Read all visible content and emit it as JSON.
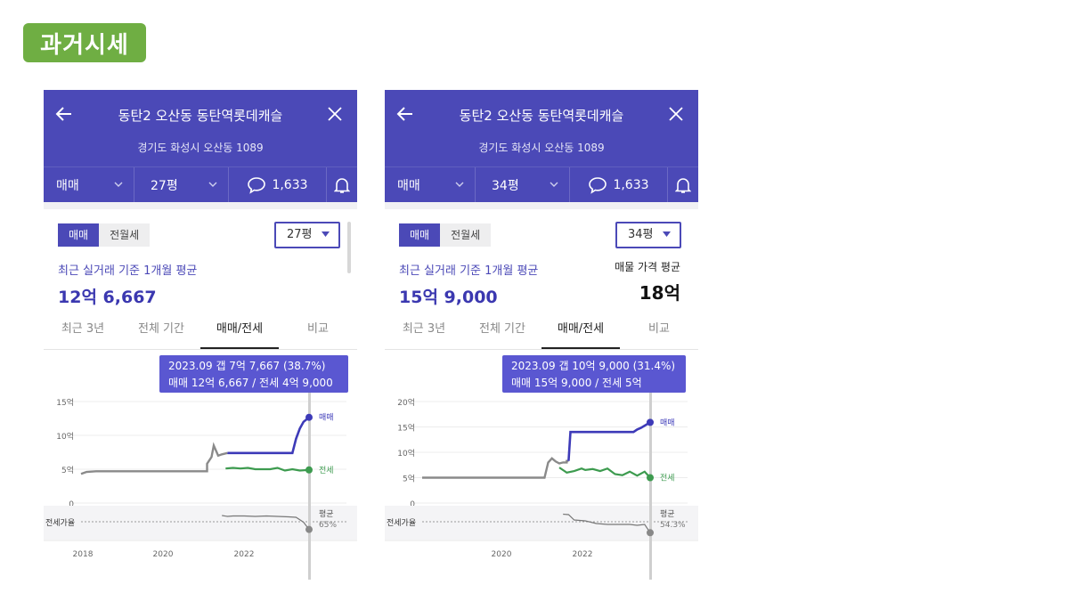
{
  "section_badge": "과거시세",
  "panels": [
    {
      "title": "동탄2 오산동 동탄역롯데캐슬",
      "address": "경기도 화성시 오산동 1089",
      "trade_type": "매매",
      "size_select": "27평",
      "comment_count": "1,633",
      "seg_on": "매매",
      "seg_off": "전월세",
      "dropdown": "27평",
      "caption": "최근 실거래 기준 1개월 평균",
      "price": "12억 6,667",
      "ask_caption": "",
      "ask_value": "",
      "tabs": [
        "최근 3년",
        "전체 기간",
        "매매/전세",
        "비교"
      ],
      "tooltip_line1": "2023.09  갭 7억 7,667 (38.7%)",
      "tooltip_line2": "매매 12억 6,667 / 전세 4억 9,000",
      "y_ticks": [
        "15억",
        "10억",
        "5억",
        "0"
      ],
      "ratio_label": "전세가율",
      "label_sale": "매매",
      "label_jeonse": "전세",
      "label_avg": "평균",
      "avg_ratio": "65%",
      "x_ticks": [
        "2018",
        "2020",
        "2022"
      ],
      "colors": {
        "sale": "#3d3ab8",
        "jeonse": "#3d9b4f",
        "pre": "#8a8a8a"
      },
      "chart_data": {
        "type": "line",
        "ylim": [
          0,
          15
        ],
        "x_range": [
          2017.6,
          2023.75
        ],
        "series": [
          {
            "name": "매매",
            "x": [
              2017.6,
              2017.75,
              2018,
              2019,
              2020,
              2021,
              2021.0,
              2021.12,
              2021.18,
              2021.3,
              2021.4,
              2021.55,
              2022.0,
              2022.5,
              2023.0,
              2023.3,
              2023.4,
              2023.5,
              2023.6,
              2023.75
            ],
            "y": [
              4.3,
              4.6,
              4.7,
              4.7,
              4.7,
              4.7,
              5.8,
              6.8,
              8.5,
              7.0,
              7.2,
              7.4,
              7.4,
              7.4,
              7.4,
              7.4,
              9.5,
              11.0,
              12.0,
              12.67
            ]
          },
          {
            "name": "전세",
            "x": [
              2021.5,
              2021.7,
              2021.9,
              2022.1,
              2022.3,
              2022.5,
              2022.7,
              2022.9,
              2023.1,
              2023.3,
              2023.5,
              2023.75
            ],
            "y": [
              5.1,
              5.2,
              5.1,
              5.2,
              5.0,
              5.0,
              5.0,
              5.2,
              4.8,
              5.0,
              4.8,
              4.9
            ]
          },
          {
            "name": "전세가율",
            "x": [
              2021.4,
              2021.55,
              2021.7,
              2022.0,
              2022.3,
              2022.6,
              2022.9,
              2023.2,
              2023.4,
              2023.6,
              2023.75
            ],
            "y": [
              70,
              68,
              69,
              69,
              68,
              69,
              68,
              67,
              66,
              55,
              38.7
            ]
          }
        ]
      }
    },
    {
      "title": "동탄2 오산동 동탄역롯데캐슬",
      "address": "경기도 화성시 오산동 1089",
      "trade_type": "매매",
      "size_select": "34평",
      "comment_count": "1,633",
      "seg_on": "매매",
      "seg_off": "전월세",
      "dropdown": "34평",
      "caption": "최근 실거래 기준 1개월 평균",
      "price": "15억 9,000",
      "ask_caption": "매물 가격 평균",
      "ask_value": "18억",
      "tabs": [
        "최근 3년",
        "전체 기간",
        "매매/전세",
        "비교"
      ],
      "tooltip_line1": "2023.09  갭 10억 9,000 (31.4%)",
      "tooltip_line2": "매매 15억 9,000 / 전세 5억",
      "y_ticks": [
        "20억",
        "15억",
        "10억",
        "5억",
        "0"
      ],
      "ratio_label": "전세가율",
      "label_sale": "매매",
      "label_jeonse": "전세",
      "label_avg": "평균",
      "avg_ratio": "54.3%",
      "x_ticks": [
        "2020",
        "2022"
      ],
      "colors": {
        "sale": "#3d3ab8",
        "jeonse": "#3d9b4f",
        "pre": "#8a8a8a"
      },
      "chart_data": {
        "type": "line",
        "ylim": [
          0,
          20
        ],
        "x_range": [
          2017.6,
          2023.75
        ],
        "series": [
          {
            "name": "매매",
            "x": [
              2017.6,
              2018,
              2019,
              2020,
              2020.9,
              2021.0,
              2021.1,
              2021.2,
              2021.3,
              2021.4,
              2021.5,
              2021.5,
              2021.55,
              2021.6,
              2022.0,
              2022.5,
              2023.0,
              2023.3,
              2023.4,
              2023.5,
              2023.75
            ],
            "y": [
              5.0,
              5.0,
              5.0,
              5.0,
              5.0,
              8.0,
              8.8,
              8.2,
              7.8,
              8.0,
              8.0,
              8.3,
              8.3,
              14.0,
              14.0,
              14.0,
              14.0,
              14.0,
              14.5,
              14.8,
              15.9
            ]
          },
          {
            "name": "전세",
            "x": [
              2021.3,
              2021.5,
              2021.7,
              2021.9,
              2022.0,
              2022.2,
              2022.4,
              2022.6,
              2022.8,
              2023.0,
              2023.2,
              2023.4,
              2023.6,
              2023.75
            ],
            "y": [
              7.0,
              6.0,
              6.3,
              6.8,
              6.5,
              6.7,
              6.3,
              6.8,
              5.7,
              5.5,
              6.2,
              5.4,
              6.2,
              5.0
            ]
          },
          {
            "name": "전세가율",
            "x": [
              2021.4,
              2021.55,
              2021.7,
              2022.0,
              2022.3,
              2022.6,
              2022.9,
              2023.2,
              2023.4,
              2023.6,
              2023.75
            ],
            "y": [
              73,
              72,
              60,
              58,
              52,
              50,
              50,
              50,
              48,
              50,
              31.4
            ]
          }
        ]
      }
    }
  ]
}
